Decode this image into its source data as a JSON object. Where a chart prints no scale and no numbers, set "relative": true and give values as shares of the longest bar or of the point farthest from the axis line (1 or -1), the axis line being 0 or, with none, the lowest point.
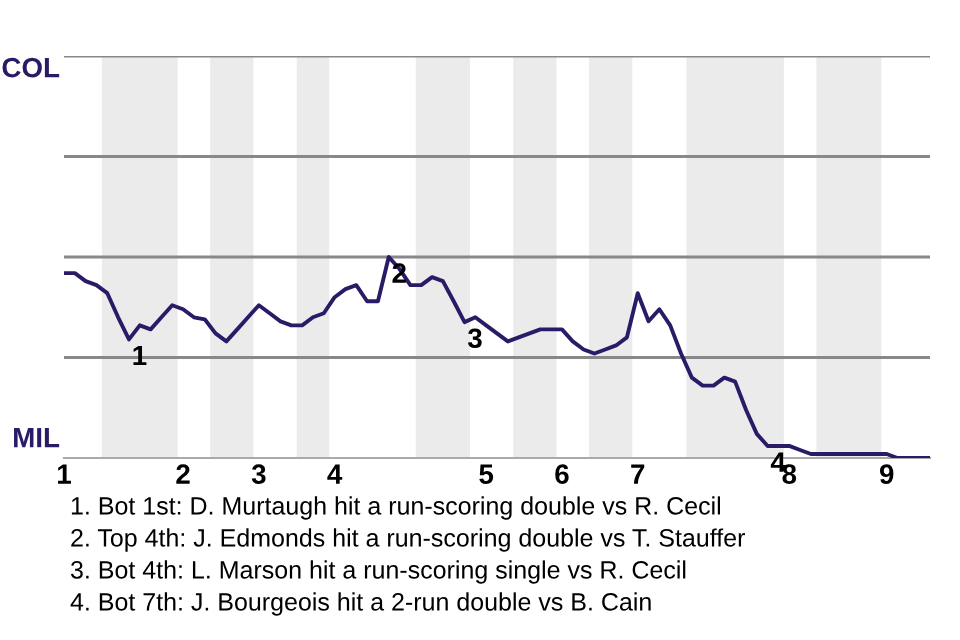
{
  "chart_data": {
    "type": "line",
    "relative": true,
    "categories": [
      "1",
      null,
      null,
      null,
      null,
      null,
      null,
      null,
      null,
      null,
      null,
      "2",
      null,
      null,
      null,
      null,
      null,
      null,
      "3",
      null,
      null,
      null,
      null,
      null,
      null,
      "4",
      null,
      null,
      null,
      null,
      null,
      null,
      null,
      null,
      null,
      null,
      null,
      null,
      null,
      "5",
      null,
      null,
      null,
      null,
      null,
      null,
      "6",
      null,
      null,
      null,
      null,
      null,
      null,
      "7",
      null,
      null,
      null,
      null,
      null,
      null,
      null,
      null,
      null,
      null,
      null,
      null,
      null,
      "8",
      null,
      null,
      null,
      null,
      null,
      null,
      null,
      null,
      "9",
      null,
      null,
      null,
      null
    ],
    "series": [
      {
        "color": "#2b1a66",
        "values": [
          0.92,
          0.92,
          0.88,
          0.86,
          0.82,
          0.7,
          0.59,
          0.66,
          0.64,
          0.7,
          0.76,
          0.74,
          0.7,
          0.69,
          0.62,
          0.58,
          0.64,
          0.7,
          0.76,
          0.72,
          0.68,
          0.66,
          0.66,
          0.7,
          0.72,
          0.8,
          0.84,
          0.86,
          0.78,
          0.78,
          1.0,
          0.94,
          0.86,
          0.86,
          0.9,
          0.88,
          0.78,
          0.676,
          0.7,
          0.66,
          0.62,
          0.58,
          0.6,
          0.62,
          0.64,
          0.64,
          0.64,
          0.58,
          0.54,
          0.52,
          0.54,
          0.56,
          0.6,
          0.82,
          0.68,
          0.74,
          0.66,
          0.52,
          0.4,
          0.36,
          0.36,
          0.4,
          0.38,
          0.24,
          0.12,
          0.06,
          0.06,
          0.06,
          0.04,
          0.02,
          0.02,
          0.02,
          0.02,
          0.02,
          0.02,
          0.02,
          0.02,
          0.0,
          0.0,
          0.0,
          0.0
        ]
      }
    ],
    "ref_lines": [
      {
        "axis": "y",
        "value": 0.5,
        "color": "#888888"
      },
      {
        "axis": "y",
        "value": 1.0,
        "color": "#888888"
      },
      {
        "axis": "y",
        "value": 1.5,
        "color": "#888888"
      },
      {
        "axis": "y",
        "value": 2.0,
        "color": "#888888"
      }
    ],
    "annotations": [
      {
        "text": "1",
        "y": 0.59
      },
      {
        "text": "2",
        "y": 1.0
      },
      {
        "text": "3",
        "y": 0.676
      },
      {
        "text": "4",
        "y": 0.06
      },
      "COL",
      "MIL",
      "1. Bot 1st: D. Murtaugh hit a run-scoring double vs R. Cecil",
      "2. Top 4th: J. Edmonds hit a run-scoring double vs T. Stauffer",
      "3. Bot 4th: L. Marson hit a run-scoring single vs R. Cecil",
      "4. Bot 7th: J. Bourgeois hit a 2-run double vs B. Cain"
    ],
    "marker": "none",
    "line_style": "solid"
  }
}
